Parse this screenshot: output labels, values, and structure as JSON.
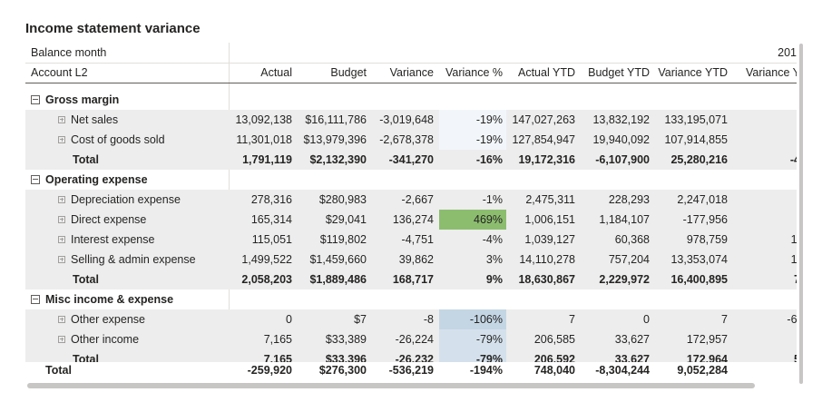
{
  "title": "Income statement variance",
  "header": {
    "row1_label": "Balance month",
    "year_label": "201",
    "row2_label": "Account L2",
    "columns": [
      "Actual",
      "Budget",
      "Variance",
      "Variance %",
      "Actual YTD",
      "Budget YTD",
      "Variance YTD",
      "Variance Y"
    ]
  },
  "rows": [
    {
      "type": "group",
      "label": "Gross margin",
      "cells": [
        "",
        "",
        "",
        "",
        "",
        "",
        "",
        ""
      ]
    },
    {
      "type": "item",
      "label": "Net sales",
      "cells": [
        "13,092,138",
        "$16,111,786",
        "-3,019,648",
        "-19%",
        "147,027,263",
        "13,832,192",
        "133,195,071",
        "("
      ],
      "pct_bg": "#f2f6fa"
    },
    {
      "type": "item",
      "label": "Cost of goods sold",
      "cells": [
        "11,301,018",
        "$13,979,396",
        "-2,678,378",
        "-19%",
        "127,854,947",
        "19,940,092",
        "107,914,855",
        "("
      ],
      "pct_bg": "#f2f6fa"
    },
    {
      "type": "total",
      "label": "Total",
      "cells": [
        "1,791,119",
        "$2,132,390",
        "-341,270",
        "-16%",
        "19,172,316",
        "-6,107,900",
        "25,280,216",
        "-4"
      ]
    },
    {
      "type": "group",
      "label": "Operating expense",
      "cells": [
        "",
        "",
        "",
        "",
        "",
        "",
        "",
        ""
      ]
    },
    {
      "type": "item",
      "label": "Depreciation expense",
      "cells": [
        "278,316",
        "$280,983",
        "-2,667",
        "-1%",
        "2,475,311",
        "228,293",
        "2,247,018",
        "("
      ]
    },
    {
      "type": "item",
      "label": "Direct expense",
      "cells": [
        "165,314",
        "$29,041",
        "136,274",
        "469%",
        "1,006,151",
        "1,184,107",
        "-177,956",
        ""
      ],
      "pct_bg": "#8cbd6f"
    },
    {
      "type": "item",
      "label": "Interest expense",
      "cells": [
        "115,051",
        "$119,802",
        "-4,751",
        "-4%",
        "1,039,127",
        "60,368",
        "978,759",
        "1,"
      ]
    },
    {
      "type": "item",
      "label": "Selling & admin expense",
      "cells": [
        "1,499,522",
        "$1,459,660",
        "39,862",
        "3%",
        "14,110,278",
        "757,204",
        "13,353,074",
        "1,"
      ]
    },
    {
      "type": "total",
      "label": "Total",
      "cells": [
        "2,058,203",
        "$1,889,486",
        "168,717",
        "9%",
        "18,630,867",
        "2,229,972",
        "16,400,895",
        "7"
      ]
    },
    {
      "type": "group",
      "label": "Misc income & expense",
      "cells": [
        "",
        "",
        "",
        "",
        "",
        "",
        "",
        ""
      ]
    },
    {
      "type": "item",
      "label": "Other expense",
      "cells": [
        "0",
        "$7",
        "-8",
        "-106%",
        "7",
        "0",
        "7",
        "-6,"
      ],
      "pct_bg": "#c4d6e4"
    },
    {
      "type": "item",
      "label": "Other income",
      "cells": [
        "7,165",
        "$33,389",
        "-26,224",
        "-79%",
        "206,585",
        "33,627",
        "172,957",
        ""
      ],
      "pct_bg": "#d4e1ec"
    },
    {
      "type": "total",
      "label": "Total",
      "cells": [
        "7,165",
        "$33,396",
        "-26,232",
        "-79%",
        "206,592",
        "33,627",
        "172,964",
        "5"
      ],
      "pct_bg": "#d4e1ec"
    }
  ],
  "grand_total": {
    "label": "Total",
    "cells": [
      "-259,920",
      "$276,300",
      "-536,219",
      "-194%",
      "748,040",
      "-8,304,244",
      "9,052,284",
      "-"
    ]
  },
  "colors": {
    "header_border": "#605e5c",
    "shade": "#ededed",
    "positive": "#8cbd6f",
    "negative": "#c4d6e4"
  }
}
